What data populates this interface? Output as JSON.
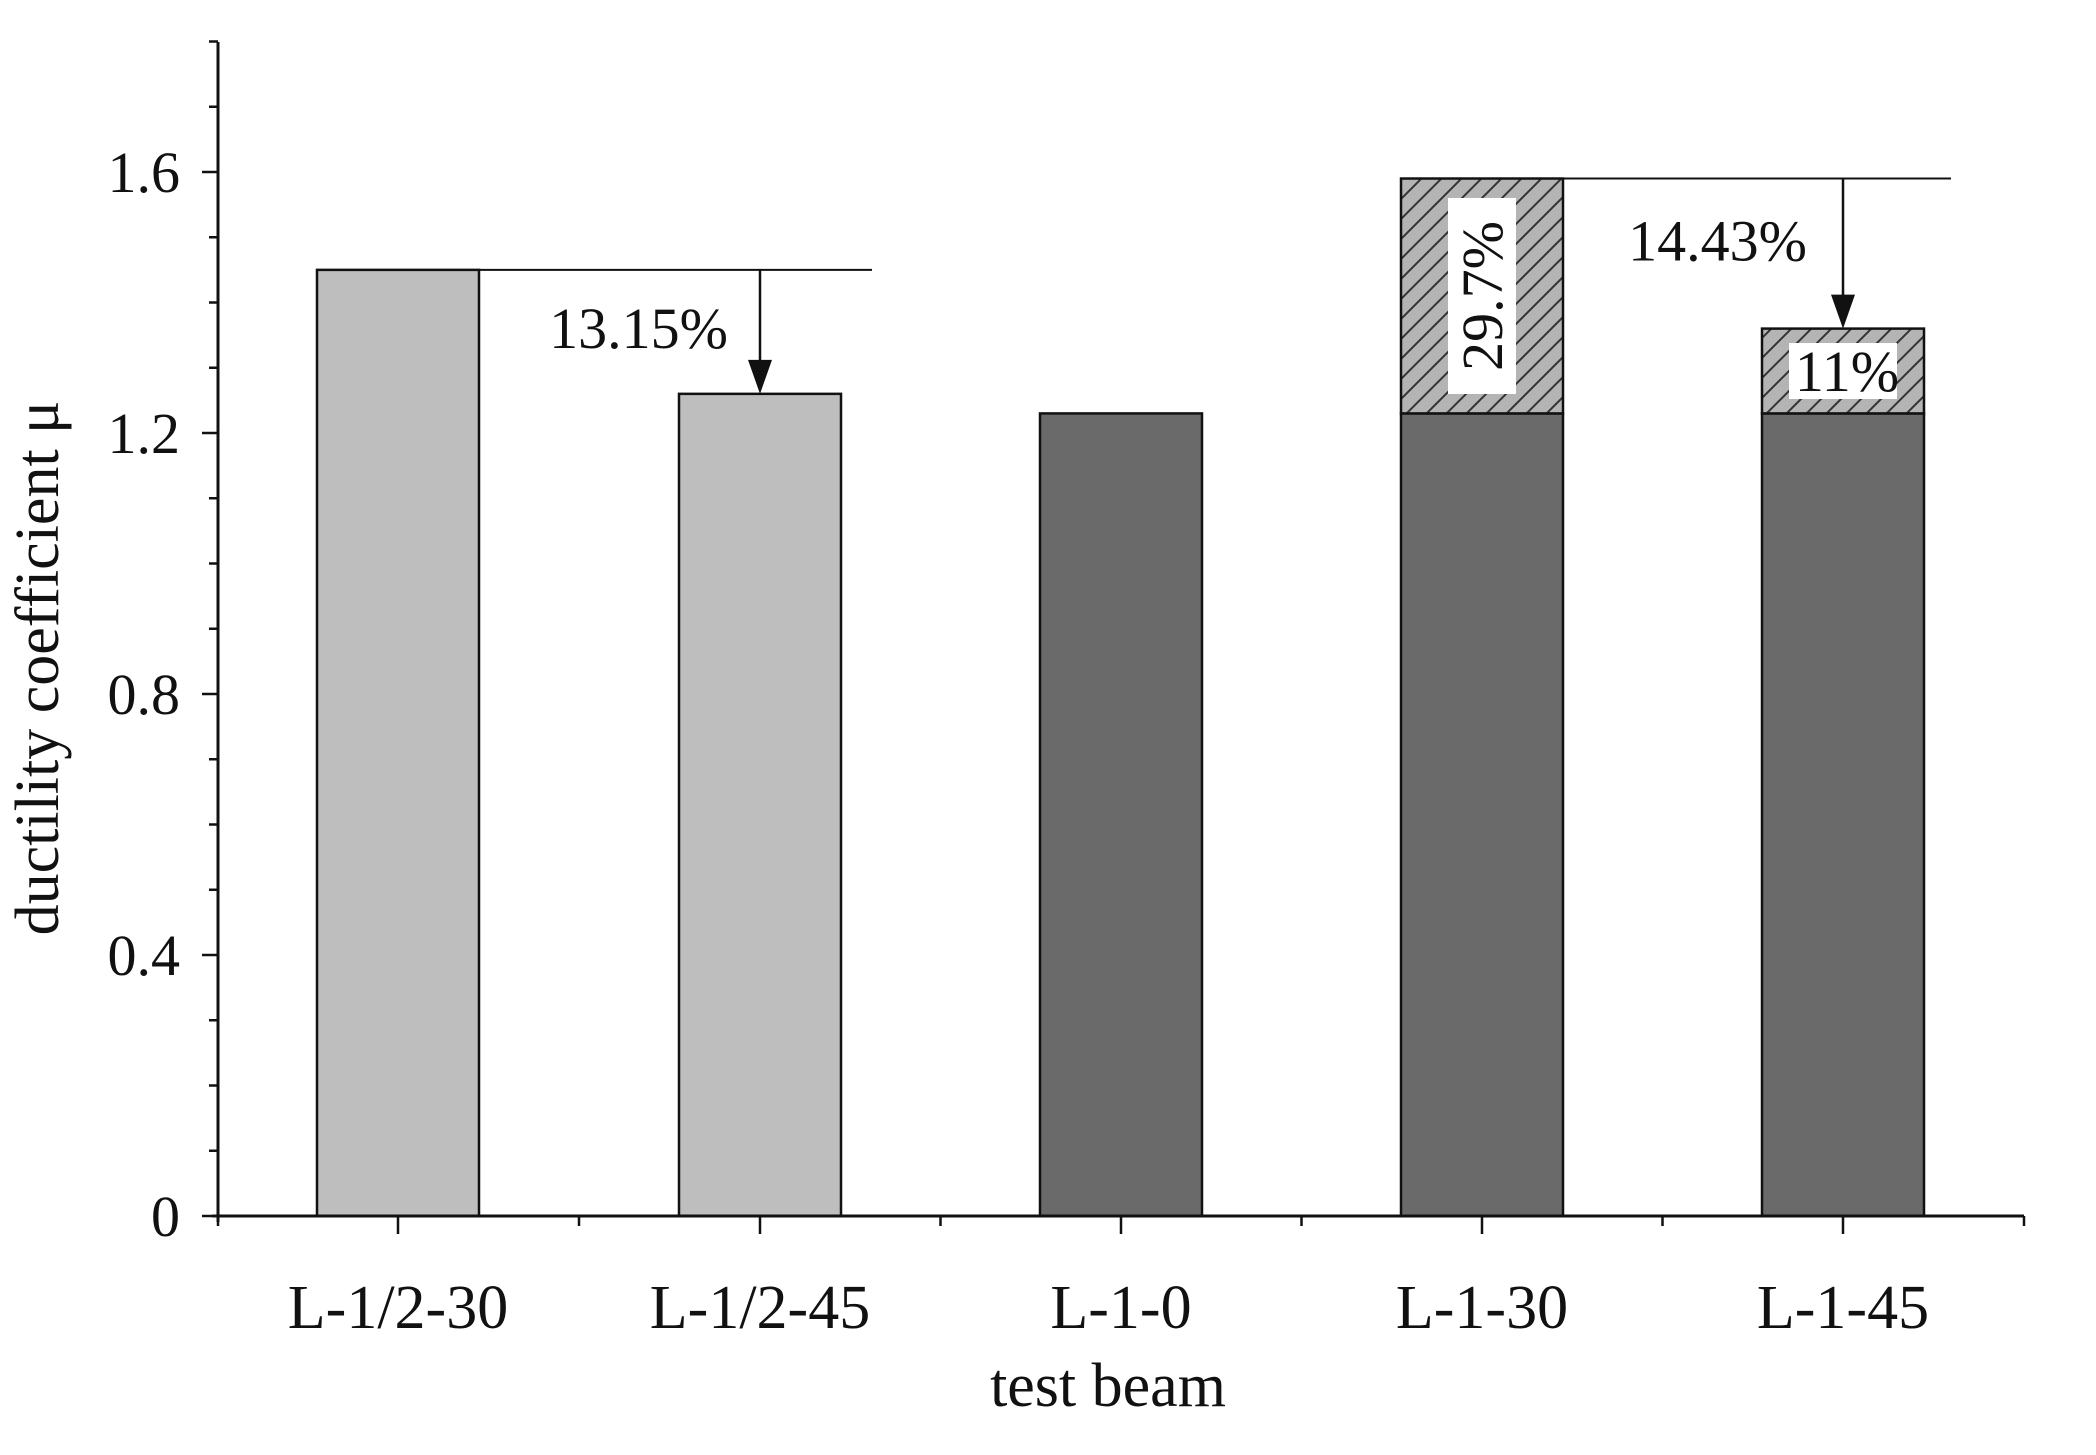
{
  "chart_data": {
    "type": "bar",
    "title": "",
    "xlabel": "test beam",
    "ylabel": "ductility coefficient μ",
    "ylim": [
      0,
      1.8
    ],
    "yticks": [
      0,
      0.4,
      0.8,
      1.2,
      1.6
    ],
    "ytick_labels": [
      "0",
      "0.4",
      "0.8",
      "1.2",
      "1.6"
    ],
    "categories": [
      "L-1/2-30",
      "L-1/2-45",
      "L-1-0",
      "L-1-30",
      "L-1-45"
    ],
    "values": [
      1.45,
      1.26,
      1.23,
      1.59,
      1.36
    ],
    "base_values": [
      1.45,
      1.26,
      1.23,
      1.23,
      1.23
    ],
    "increment_values": [
      0,
      0,
      0,
      0.36,
      0.13
    ],
    "bar_colors": [
      "#bebebe",
      "#bebebe",
      "#6a6a6a",
      "#6a6a6a",
      "#6a6a6a"
    ],
    "increment_color": "#b4b4b4",
    "increment_pattern": "diagonal-hatch",
    "grid": false,
    "annotations": [
      {
        "text": "13.15%",
        "type": "drop-arrow",
        "from_category": "L-1/2-30",
        "to_category": "L-1/2-45",
        "from_value": 1.45,
        "to_value": 1.26
      },
      {
        "text": "29.7%",
        "type": "increment-label",
        "category": "L-1-30",
        "rotated": true
      },
      {
        "text": "14.43%",
        "type": "drop-arrow",
        "from_category": "L-1-30",
        "to_category": "L-1-45",
        "from_value": 1.59,
        "to_value": 1.36
      },
      {
        "text": "11%",
        "type": "increment-label",
        "category": "L-1-45",
        "rotated": false
      }
    ]
  }
}
